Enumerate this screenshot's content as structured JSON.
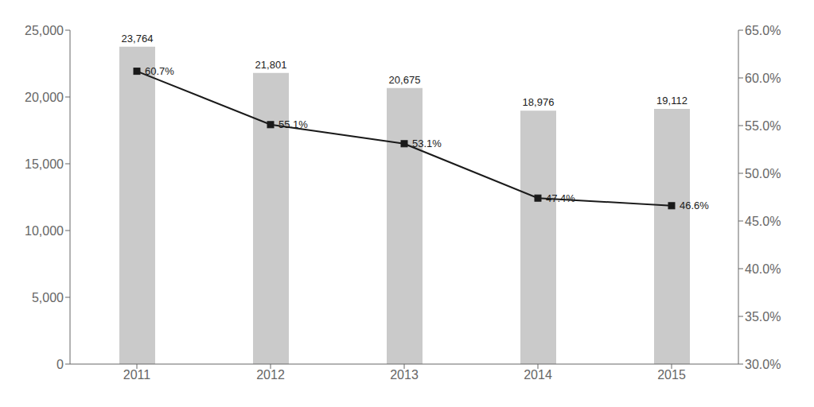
{
  "chart_data": {
    "type": "bar",
    "categories": [
      "2011",
      "2012",
      "2013",
      "2014",
      "2015"
    ],
    "series": [
      {
        "type": "bar",
        "color": "#cacaca",
        "values": [
          23764,
          21801,
          20675,
          18976,
          19112
        ],
        "value_labels": [
          "23,764",
          "21,801",
          "20,675",
          "18,976",
          "19,112"
        ]
      },
      {
        "type": "line",
        "axis": "y2",
        "color": "#1a1a1a",
        "marker": "square",
        "values": [
          60.7,
          55.1,
          53.1,
          47.4,
          46.6
        ],
        "value_labels": [
          "60.7%",
          "55.1%",
          "53.1%",
          "47.4%",
          "46.6%"
        ]
      }
    ],
    "ylim": [
      0,
      25000
    ],
    "yticks": [
      0,
      {
        "value": 5000,
        "label": "5,000"
      },
      {
        "value": 10000,
        "label": "10,000"
      },
      {
        "value": 15000,
        "label": "15,000"
      },
      {
        "value": 20000,
        "label": "20,000"
      },
      {
        "value": 25000,
        "label": "25,000"
      }
    ],
    "y2lim": [
      30.0,
      65.0
    ],
    "y2ticks": [
      {
        "value": 30.0,
        "label": "30.0%"
      },
      {
        "value": 35.0,
        "label": "35.0%"
      },
      {
        "value": 40.0,
        "label": "40.0%"
      },
      {
        "value": 45.0,
        "label": "45.0%"
      },
      {
        "value": 50.0,
        "label": "50.0%"
      },
      {
        "value": 55.0,
        "label": "55.0%"
      },
      {
        "value": 60.0,
        "label": "60.0%"
      },
      {
        "value": 65.0,
        "label": "65.0%"
      }
    ],
    "data_labels": true,
    "grid": false
  }
}
